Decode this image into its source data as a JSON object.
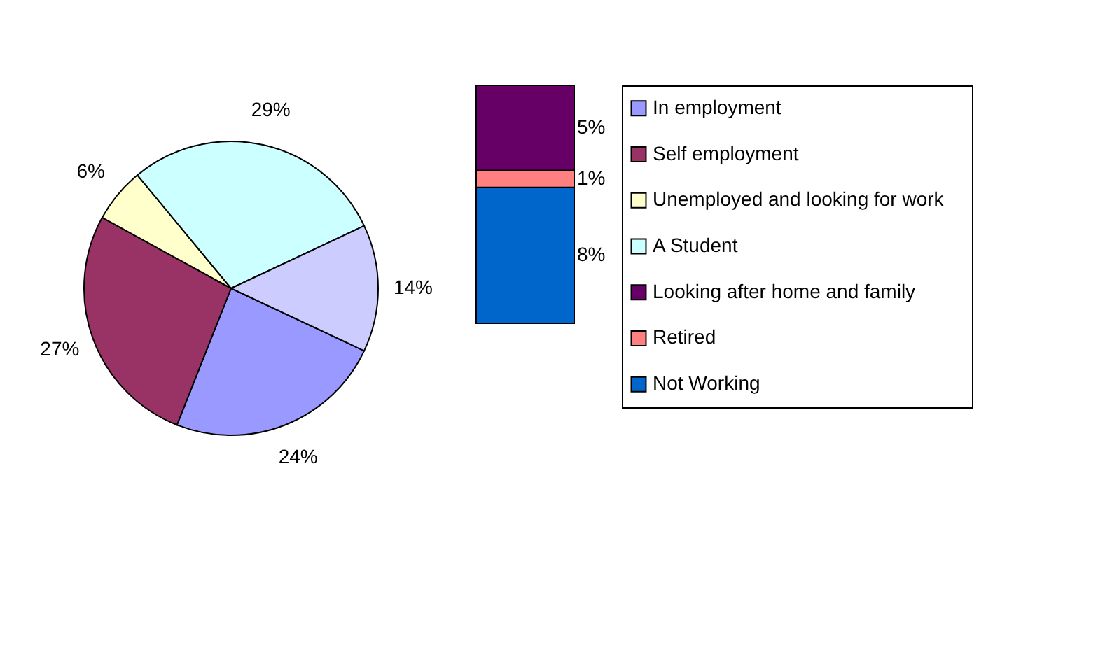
{
  "chart_data": [
    {
      "type": "pie",
      "categories": [
        "In employment",
        "Self employment",
        "Unemployed and looking for work",
        "A Student",
        null
      ],
      "values": [
        24,
        27,
        6,
        29,
        14
      ],
      "colors": [
        "#9999ff",
        "#993366",
        "#ffffcc",
        "#ccffff",
        "#ccccff"
      ],
      "value_labels": [
        "24%",
        "27%",
        "6%",
        "29%",
        "14%"
      ],
      "legend": "right"
    },
    {
      "type": "bar",
      "stacked": true,
      "categories": [
        null
      ],
      "legend": "right",
      "series": [
        {
          "name": "Not Working",
          "color": "#0066cc",
          "values": [
            8
          ],
          "value_labels": [
            "8%"
          ]
        },
        {
          "name": "Retired",
          "color": "#ff8080",
          "values": [
            1
          ],
          "value_labels": [
            "1%"
          ]
        },
        {
          "name": "Looking after home and family",
          "color": "#660066",
          "values": [
            5
          ],
          "value_labels": [
            "5%"
          ]
        }
      ]
    }
  ]
}
